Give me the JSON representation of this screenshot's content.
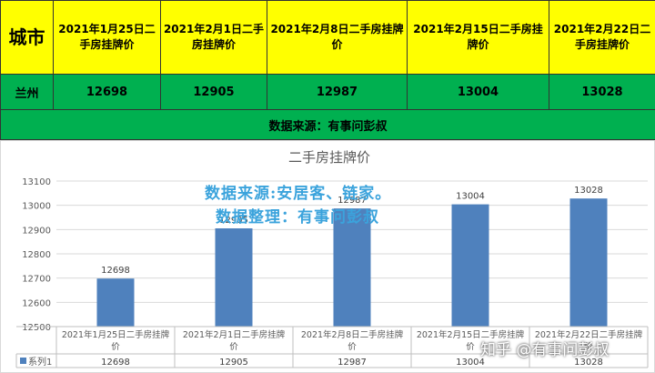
{
  "table": {
    "city_header": "城市",
    "date_headers": [
      "2021年1月25日二手房挂牌价",
      "2021年2月1日二手房挂牌价",
      "2021年2月8日二手房挂牌价",
      "2021年2月15日二手房挂牌价",
      "2021年2月22日二手房挂牌价"
    ],
    "city": "兰州",
    "values": [
      "12698",
      "12905",
      "12987",
      "13004",
      "13028"
    ],
    "source_note": "数据来源：有事问彭叔"
  },
  "watermark": {
    "line1": "数据来源:安居客、链家。",
    "line2": "数据整理：有事问彭叔",
    "zhihu": "知乎 @有事问彭叔"
  },
  "chart_data": {
    "type": "bar",
    "title": "二手房挂牌价",
    "categories": [
      "2021年1月25日二手房挂牌价",
      "2021年2月1日二手房挂牌价",
      "2021年2月8日二手房挂牌价",
      "2021年2月15日二手房挂牌价",
      "2021年2月22日二手房挂牌价"
    ],
    "series": [
      {
        "name": "系列1",
        "values": [
          12698,
          12905,
          12987,
          13004,
          13028
        ]
      }
    ],
    "ylim": [
      12500,
      13100
    ],
    "yticks": [
      12500,
      12600,
      12700,
      12800,
      12900,
      13000,
      13100
    ],
    "grid": true,
    "legend": "data-table",
    "colors": {
      "bar": "#4f81bd",
      "table_header": "#ffff00",
      "table_fill": "#00b050"
    }
  }
}
